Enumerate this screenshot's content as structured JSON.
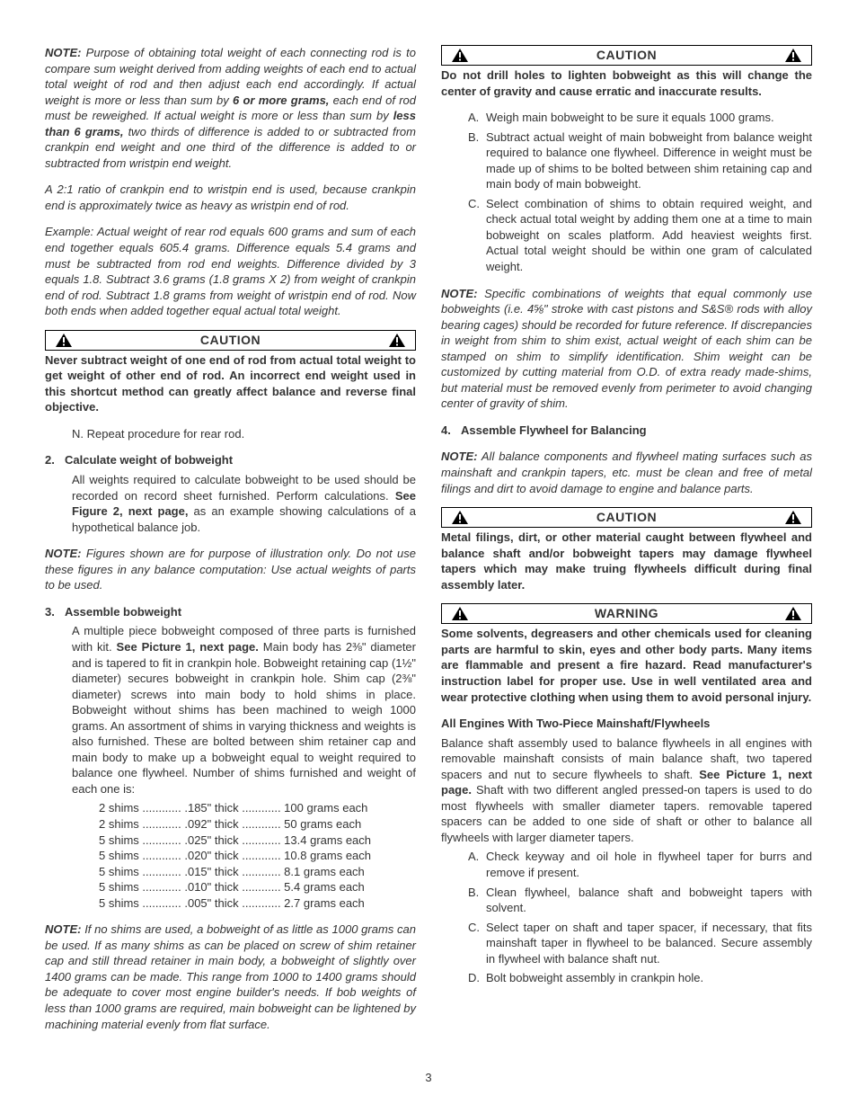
{
  "left": {
    "note1_lead": "NOTE:",
    "note1": " Purpose of obtaining total weight of each connecting rod is to compare sum weight derived from adding weights of each end to actual total weight of rod and then adjust each end accordingly. If actual weight is more or less than sum by ",
    "note1_b1": "6 or more grams,",
    "note1_c": " each end of rod must be reweighed. If actual weight is more or less than sum by ",
    "note1_b2": "less than 6 grams,",
    "note1_d": " two thirds of difference is added to or subtracted from crankpin end weight and one third of the difference is added to or subtracted from wristpin end weight.",
    "note1_p2": "A 2:1 ratio of crankpin end to wristpin end is used, because crankpin end is approximately twice as heavy as wristpin end of rod.",
    "example": "Example: Actual weight of rear rod equals 600 grams and sum of each end together equals 605.4 grams. Difference equals 5.4 grams and must be subtracted from rod end weights. Difference divided by 3 equals 1.8. Subtract 3.6 grams (1.8 grams X 2) from weight of crankpin end of rod. Subtract 1.8 grams from weight of wristpin end of rod. Now both ends when added together equal actual total weight.",
    "caution1_label": "CAUTION",
    "caution1_text": "Never subtract weight of one end of rod from actual total weight to get weight of other end of rod. An incorrect end weight used in this shortcut method can greatly affect balance and reverse final objective.",
    "stepN": "N. Repeat procedure for rear rod.",
    "step2_num": "2.",
    "step2_title": "Calculate weight of bobweight",
    "step2_body_a": "All weights required to calculate bobweight to be used should be recorded on record sheet furnished. Perform calculations. ",
    "step2_body_b": "See Figure 2, next page,",
    "step2_body_c": " as an example showing calculations of a hypothetical balance job.",
    "note2_lead": "NOTE:",
    "note2": " Figures shown are for purpose of illustration only. Do not use these figures in any balance computation: Use actual weights of parts to be used.",
    "step3_num": "3.",
    "step3_title": "Assemble bobweight",
    "step3_body_a": "A multiple piece bobweight composed of three parts is furnished with kit. ",
    "step3_body_b": "See Picture 1, next page.",
    "step3_body_c": " Main body has 2⅜\" diameter and is tapered to fit in crankpin hole. Bobweight retaining cap (1½\" diameter) secures bobweight in crankpin hole. Shim cap (2⅜\" diameter) screws into main body to hold shims in place. Bobweight without shims has been machined to weigh 1000 grams. An assortment of shims in varying thickness and weights is also furnished. These are bolted between shim retainer cap and main body to make up a bobweight equal to weight required to balance one flywheel. Number of shims furnished and weight of each one is:",
    "shims": [
      {
        "q": "2 shims",
        "t": ".185\" thick",
        "w": "100 grams each"
      },
      {
        "q": "2 shims",
        "t": ".092\" thick",
        "w": "50 grams each"
      },
      {
        "q": "5 shims",
        "t": ".025\" thick",
        "w": "13.4 grams each"
      },
      {
        "q": "5 shims",
        "t": ".020\" thick",
        "w": "10.8 grams each"
      },
      {
        "q": "5 shims",
        "t": ".015\" thick",
        "w": "8.1 grams each"
      },
      {
        "q": "5 shims",
        "t": ".010\" thick",
        "w": "5.4 grams each"
      },
      {
        "q": "5 shims",
        "t": ".005\" thick",
        "w": "2.7 grams each"
      }
    ],
    "note3_lead": "NOTE:",
    "note3": " If no shims are used, a bobweight of as little as 1000 grams can be used. If as many shims as can be placed on screw of shim retainer cap and still thread retainer in main body, a bobweight of slightly over 1400 grams can be made. This range from 1000 to 1400 grams should be adequate to cover most engine builder's needs. If bob weights of less than 1000 grams are required, main bobweight can be lightened by machining material evenly from flat surface."
  },
  "right": {
    "caution2_label": "CAUTION",
    "caution2_text": "Do not drill holes to lighten bobweight as this will change the center of gravity and cause erratic and inaccurate results.",
    "subA": "Weigh main bobweight to be sure it equals 1000 grams.",
    "subB": "Subtract actual weight of main bobweight from balance weight required to balance one flywheel. Difference in weight must be made up of shims to be bolted between shim retaining cap and main body of main bobweight.",
    "subC": "Select combination of shims to obtain required weight, and check actual total weight by adding them one at a time to main bobweight on scales platform. Add heaviest weights first. Actual total weight should be within one gram of calculated weight.",
    "note4_lead": "NOTE:",
    "note4": " Specific combinations of weights that equal commonly use bobweights (i.e. 4⅝\" stroke with cast pistons and S&S® rods with alloy bearing cages) should be recorded for future reference. If discrepancies in weight from shim to shim exist, actual weight of each shim can be stamped on shim to simplify identification. Shim weight can be customized by cutting material from O.D. of extra ready made-shims, but material must be removed evenly from perimeter to avoid changing center of gravity of shim.",
    "step4_num": "4.",
    "step4_title": "Assemble Flywheel for Balancing",
    "note5_lead": "NOTE:",
    "note5": " All balance components and flywheel mating surfaces such as mainshaft and crankpin tapers, etc. must be clean and free of metal filings and dirt to avoid damage to engine and balance parts.",
    "caution3_label": "CAUTION",
    "caution3_text": "Metal filings, dirt, or other material caught between flywheel and balance shaft and/or bobweight tapers may damage flywheel tapers which may make truing flywheels difficult during final assembly later.",
    "warning_label": "WARNING",
    "warning_text": "Some solvents, degreasers and other chemicals used for cleaning parts are harmful to skin, eyes and other body parts. Many items are flammable and present a fire hazard. Read manufacturer's instruction label for proper use. Use in well ventilated area and wear protective clothing when using them to avoid personal injury.",
    "heading2": "All Engines With Two-Piece Mainshaft/Flywheels",
    "body2_a": "Balance shaft assembly used to balance flywheels in all engines with removable mainshaft consists of main balance shaft, two tapered spacers and nut to secure flywheels to shaft. ",
    "body2_b": "See Picture 1, next page.",
    "body2_c": " Shaft with two different angled pressed-on tapers is used to do most flywheels with smaller diameter tapers. removable tapered spacers can be added to one side of shaft or other to balance all flywheels with larger diameter tapers.",
    "sub2A": "Check keyway and oil hole in flywheel taper for burrs and remove if present.",
    "sub2B": "Clean flywheel, balance shaft and bobweight tapers with solvent.",
    "sub2C": "Select taper on shaft and taper spacer, if necessary, that fits mainshaft taper in flywheel to be balanced. Secure assembly in flywheel with balance shaft nut.",
    "sub2D": "Bolt bobweight assembly in crankpin hole."
  },
  "pagenum": "3"
}
